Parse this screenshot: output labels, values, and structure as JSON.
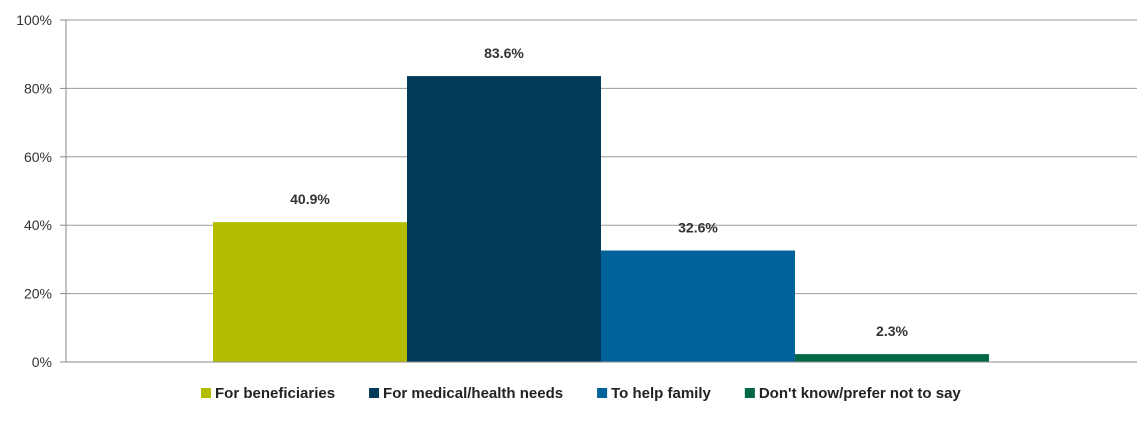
{
  "chart_data": {
    "type": "bar",
    "title": "",
    "xlabel": "",
    "ylabel": "",
    "ylim": [
      0,
      100
    ],
    "y_ticks": [
      "0%",
      "20%",
      "40%",
      "60%",
      "80%",
      "100%"
    ],
    "grid": true,
    "legend_placement": "bottom",
    "categories": [
      ""
    ],
    "series": [
      {
        "name": "For beneficiaries",
        "values": [
          40.9
        ],
        "label": "40.9%",
        "color": "#b5bd00"
      },
      {
        "name": "For medical/health needs",
        "values": [
          83.6
        ],
        "label": "83.6%",
        "color": "#023a5a"
      },
      {
        "name": "To help family",
        "values": [
          32.6
        ],
        "label": "32.6%",
        "color": "#00629b"
      },
      {
        "name": "Don't know/prefer not to say",
        "values": [
          2.3
        ],
        "label": "2.3%",
        "color": "#006747"
      }
    ]
  }
}
